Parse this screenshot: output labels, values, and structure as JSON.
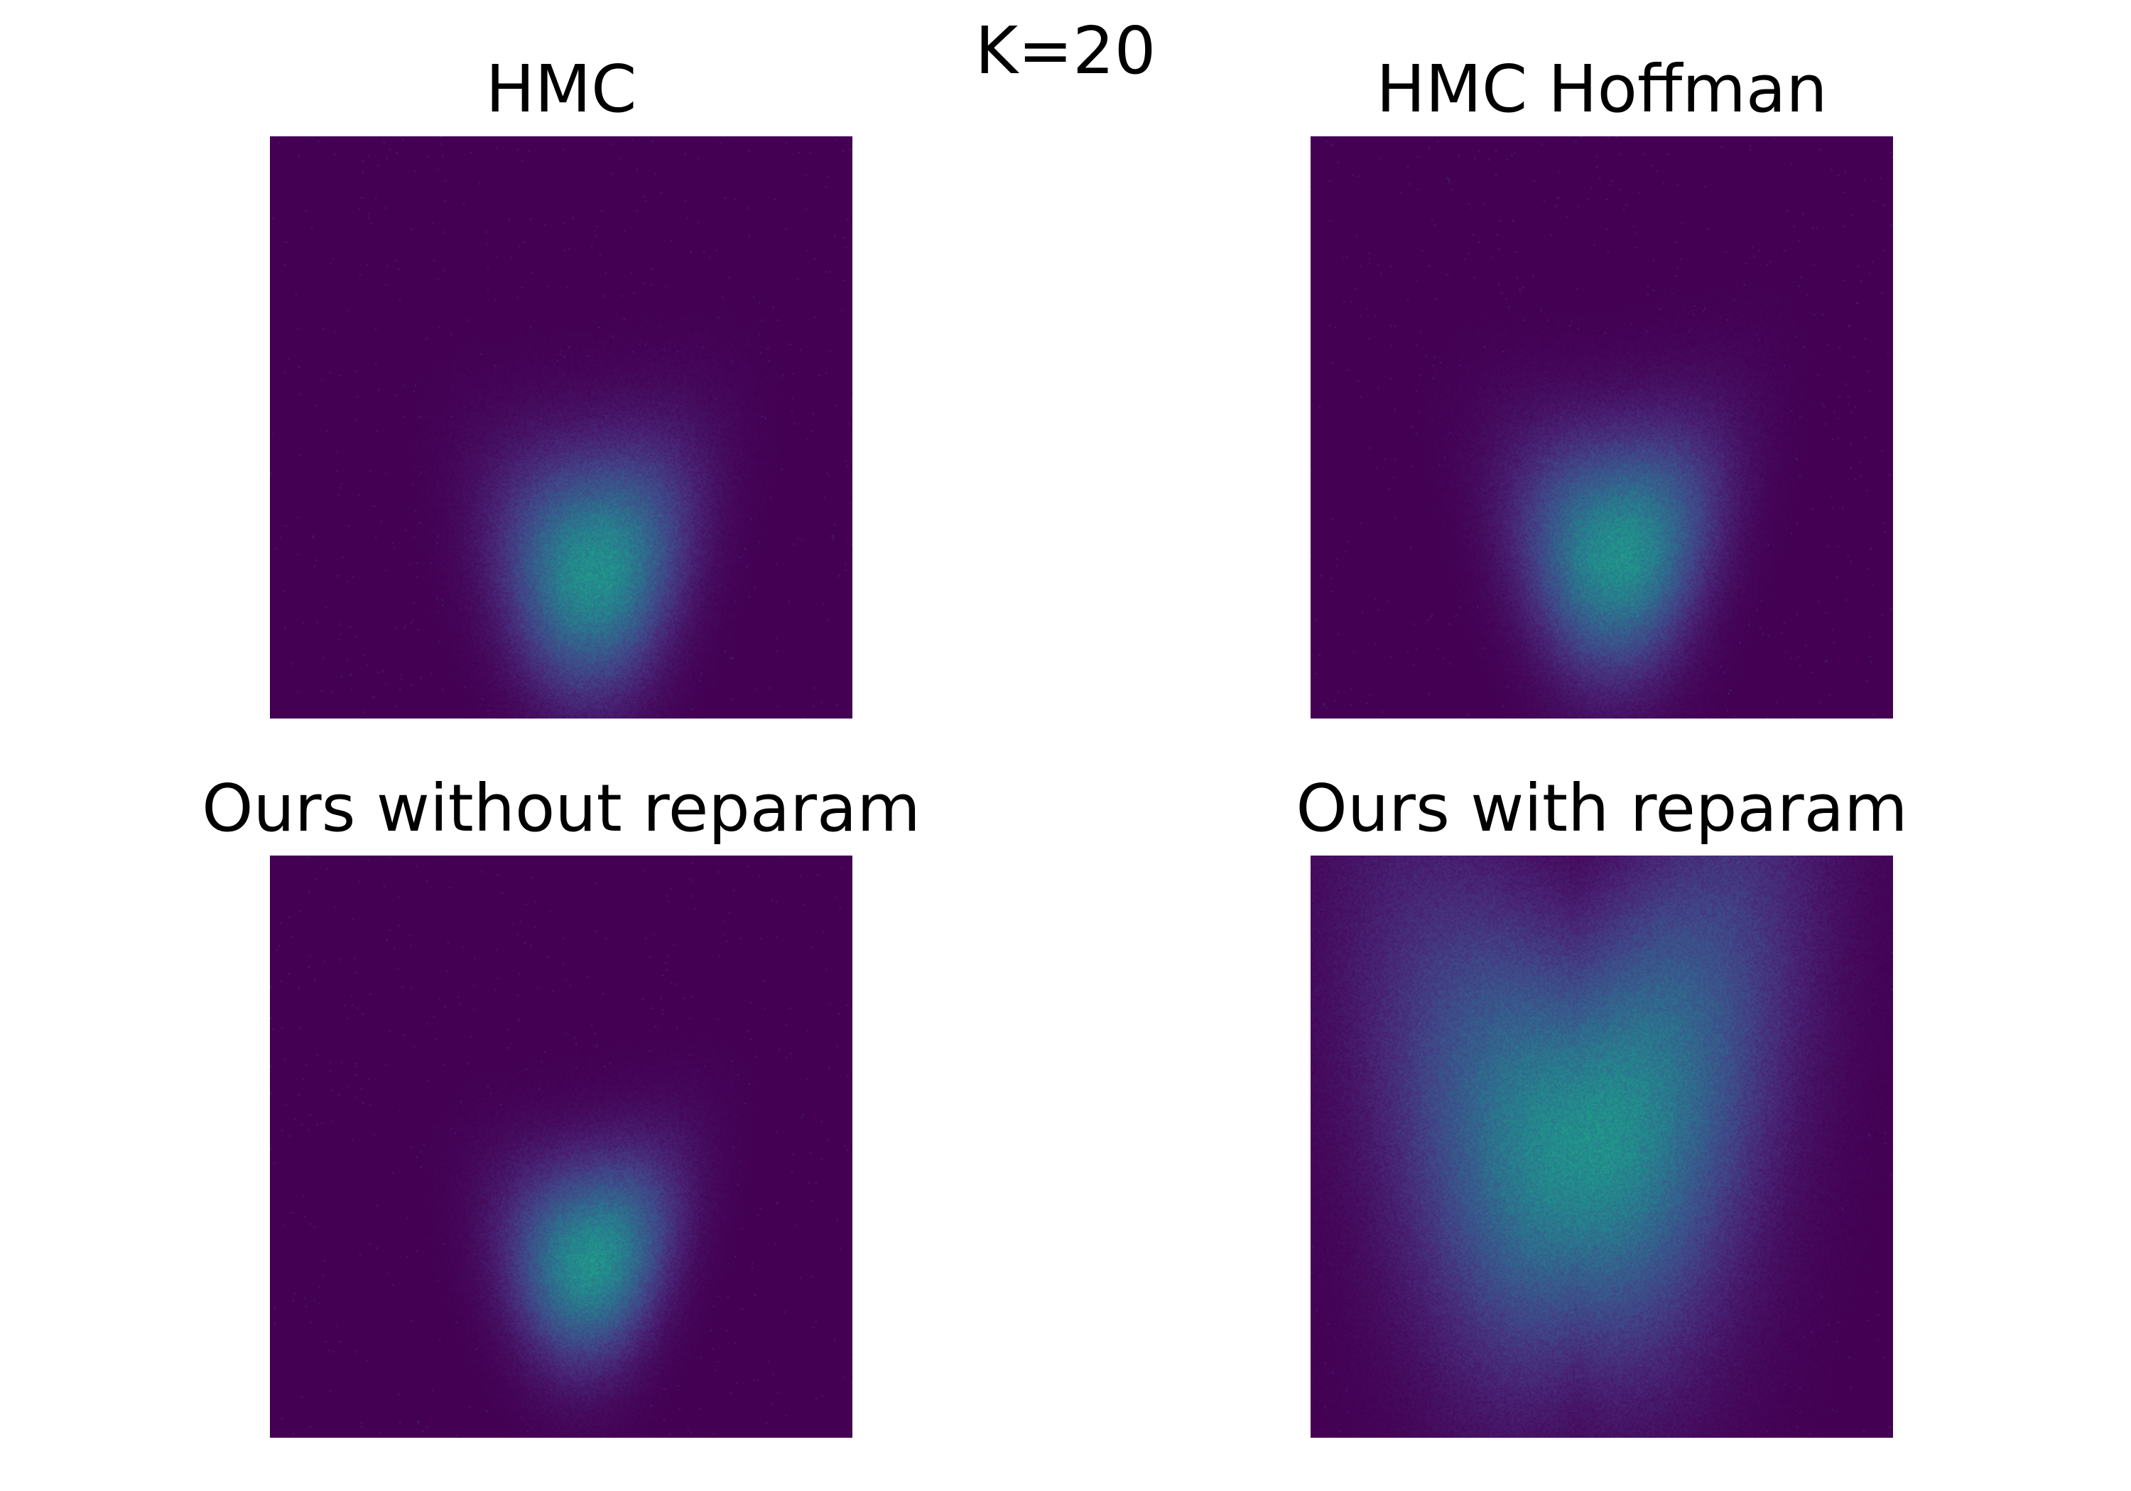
{
  "suptitle": "K=20",
  "colors": {
    "background_density": "#440154",
    "colormap": "viridis",
    "page_background": "#ffffff"
  },
  "chart_data": [
    {
      "type": "heatmap",
      "title": "HMC",
      "axes_visible": false,
      "grid": false,
      "shape": "banana",
      "mode": [
        0.05,
        0.75
      ],
      "curvature": 0.58,
      "spread": [
        0.19,
        0.13
      ],
      "tilt": 0.1,
      "tail_spread": 0.0
    },
    {
      "type": "heatmap",
      "title": "HMC Hoffman",
      "axes_visible": false,
      "grid": false,
      "shape": "banana",
      "mode": [
        0.0,
        0.72
      ],
      "curvature": 0.6,
      "spread": [
        0.2,
        0.13
      ],
      "tilt": 0.08,
      "tail_spread": 0.0
    },
    {
      "type": "heatmap",
      "title": "Ours without reparam",
      "axes_visible": false,
      "grid": false,
      "shape": "banana",
      "mode": [
        0.02,
        0.7
      ],
      "curvature": 0.6,
      "spread": [
        0.17,
        0.11
      ],
      "tilt": 0.14,
      "tail_spread": 0.0
    },
    {
      "type": "heatmap",
      "title": "Ours with reparam",
      "axes_visible": false,
      "grid": false,
      "shape": "banana",
      "mode": [
        -0.15,
        0.5
      ],
      "curvature": 0.55,
      "spread": [
        0.27,
        0.22
      ],
      "tilt": 0.12,
      "tail_spread": 0.35
    }
  ]
}
